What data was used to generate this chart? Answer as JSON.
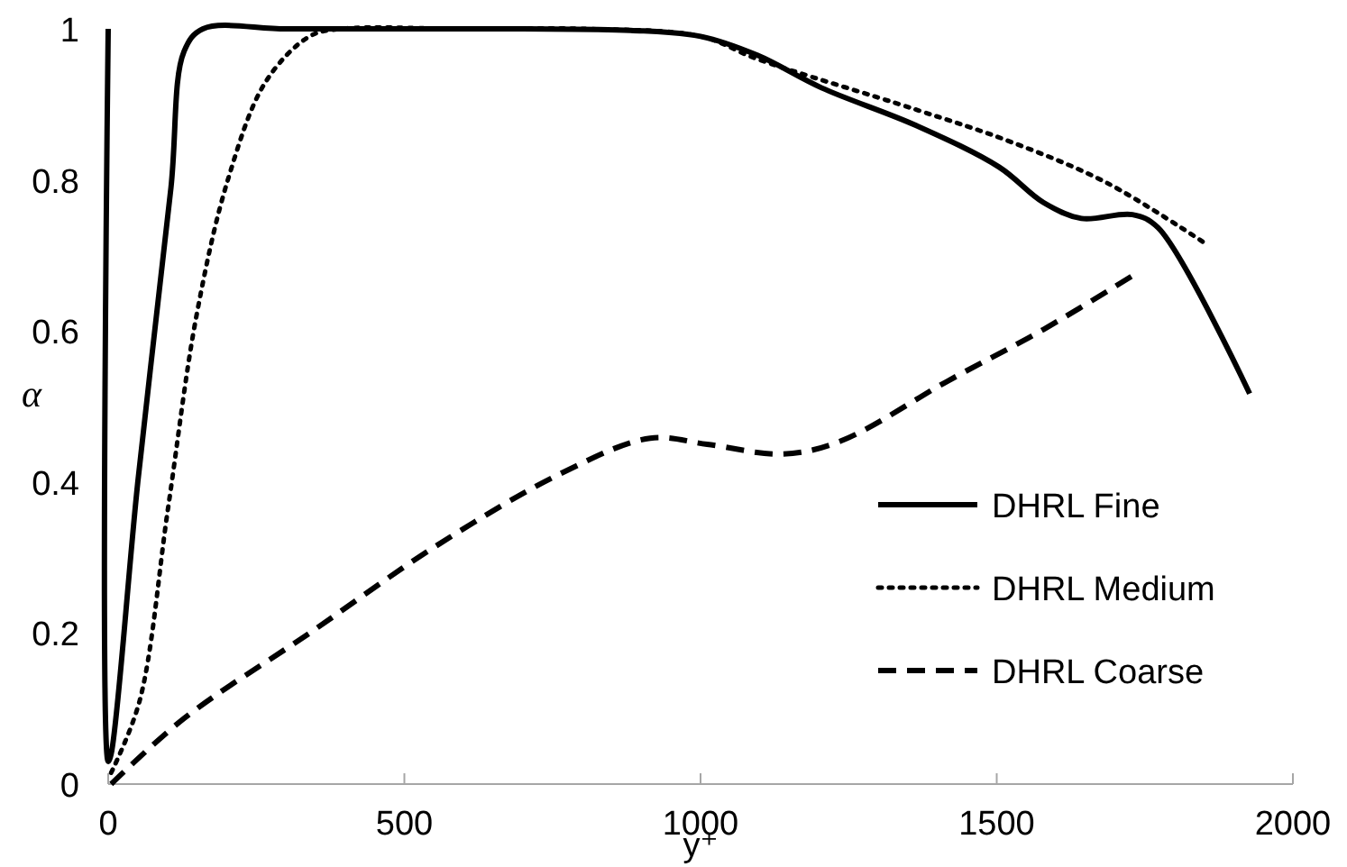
{
  "chart_data": {
    "type": "line",
    "xlabel": "y⁺",
    "ylabel": "α",
    "xlim": [
      0,
      2000
    ],
    "xticks": [
      0,
      500,
      1000,
      1500,
      2000
    ],
    "ylim": [
      0,
      1
    ],
    "yticks": [
      0,
      0.2,
      0.4,
      0.6,
      0.8,
      1
    ],
    "grid": false,
    "legend": "bottom right",
    "series": [
      {
        "name": "DHRL Fine",
        "color": "#000000",
        "line_style": "solid",
        "x": [
          0,
          0,
          5,
          50,
          106,
          128,
          160,
          300,
          500,
          700,
          882,
          1000,
          1096,
          1204,
          1364,
          1504,
          1579,
          1643,
          1729,
          1772,
          1927
        ],
        "values": [
          1,
          0.03,
          0.04,
          0.4,
          0.79,
          0.97,
          1,
          1,
          1,
          1,
          0.998,
          0.99,
          0.965,
          0.922,
          0.872,
          0.817,
          0.77,
          0.749,
          0.754,
          0.737,
          0.517
        ]
      },
      {
        "name": "DHRL Medium",
        "color": "#000000",
        "line_style": "dotted",
        "x": [
          5,
          53,
          101,
          149,
          202,
          266,
          340,
          394,
          600,
          800,
          1000,
          1096,
          1364,
          1525,
          1686,
          1852
        ],
        "values": [
          0.015,
          0.11,
          0.365,
          0.62,
          0.8,
          0.93,
          0.99,
          1,
          1,
          1,
          0.99,
          0.96,
          0.893,
          0.85,
          0.796,
          0.716
        ]
      },
      {
        "name": "DHRL Coarse",
        "color": "#000000",
        "line_style": "dashed",
        "x": [
          5,
          128,
          340,
          553,
          766,
          915,
          1011,
          1139,
          1236,
          1418,
          1579,
          1729
        ],
        "values": [
          0,
          0.087,
          0.2,
          0.315,
          0.412,
          0.458,
          0.45,
          0.437,
          0.454,
          0.534,
          0.602,
          0.673
        ]
      }
    ]
  }
}
